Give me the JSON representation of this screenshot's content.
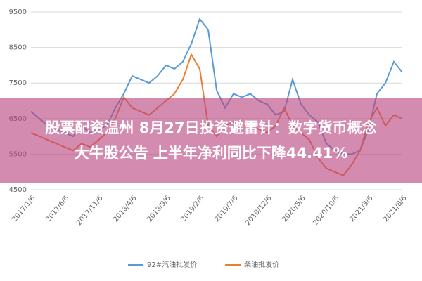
{
  "chart_data": {
    "type": "line",
    "categories": [
      "2017/1/6",
      null,
      null,
      null,
      "2017/6/6",
      null,
      null,
      null,
      "2017/11/6",
      null,
      null,
      null,
      "2018/4/6",
      null,
      null,
      null,
      "2018/9/6",
      null,
      null,
      null,
      "2019/2/6",
      null,
      null,
      null,
      "2019/7/6",
      null,
      null,
      null,
      "2019/12/6",
      null,
      null,
      null,
      "2020/5/6",
      null,
      null,
      null,
      "2020/10/6",
      null,
      null,
      null,
      "2021/3/6",
      null,
      null,
      null,
      "2021/8/6"
    ],
    "series": [
      {
        "name": "92#汽油批发价",
        "color": "#5b9bd5",
        "values": [
          6700,
          6500,
          6300,
          6200,
          6100,
          6000,
          6300,
          6100,
          6200,
          6300,
          6800,
          7200,
          7700,
          7600,
          7500,
          7700,
          8000,
          7900,
          8100,
          8600,
          9300,
          9000,
          7300,
          6800,
          7200,
          7100,
          7200,
          7000,
          6900,
          6600,
          6700,
          7600,
          6900,
          6600,
          6400,
          5800,
          5600,
          5500,
          5500,
          5600,
          6200,
          7200,
          7500,
          8100,
          7800
        ]
      },
      {
        "name": "柴油批发价",
        "color": "#ed7d31",
        "values": [
          6100,
          6000,
          5900,
          5800,
          5700,
          5600,
          5800,
          5700,
          5900,
          6100,
          6500,
          7100,
          6800,
          6700,
          6600,
          6800,
          7000,
          7200,
          7600,
          8300,
          7900,
          6300,
          6000,
          6300,
          6400,
          6300,
          6300,
          6200,
          6100,
          6300,
          6800,
          6300,
          6100,
          5900,
          5400,
          5100,
          5000,
          4900,
          5200,
          5600,
          6400,
          6800,
          6300,
          6600,
          6500
        ]
      }
    ],
    "ylim": [
      4500,
      9500
    ],
    "yticks": [
      4500,
      5500,
      6500,
      7500,
      8500,
      9500
    ],
    "grid": true,
    "legend": "bottom"
  },
  "overlay": [
    "股票配资温州 8月27日投资避雷针：数字货币概念",
    "大牛股公告 上半年净利同比下降44.41%"
  ]
}
